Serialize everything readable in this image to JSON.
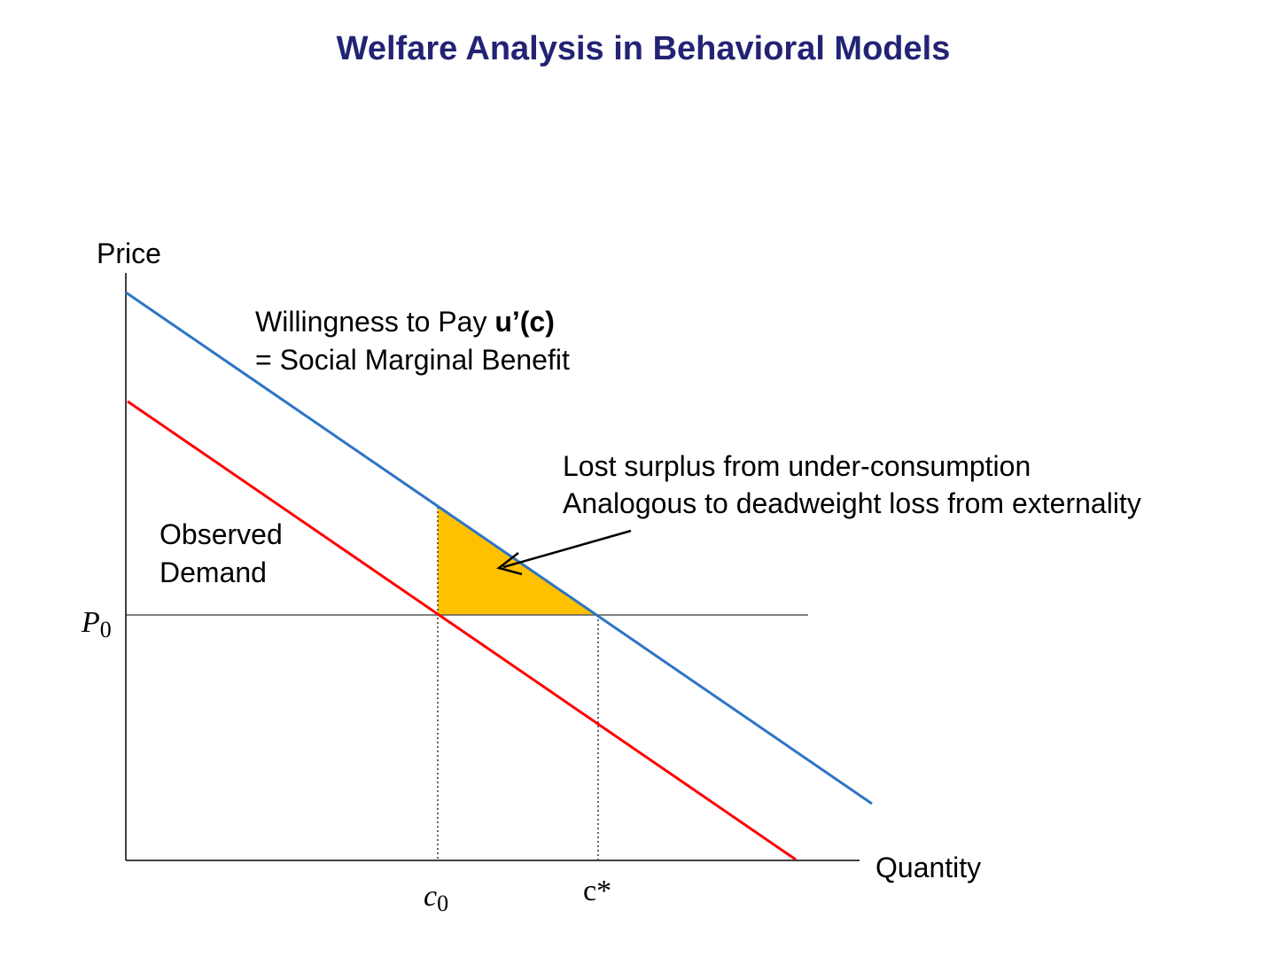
{
  "title": "Welfare Analysis in Behavioral Models",
  "diagram": {
    "y_axis_label": "Price",
    "x_axis_label": "Quantity",
    "wtp_label_prefix": "Willingness to Pay ",
    "wtp_label_bold": "u’(c)",
    "smb_label": "= Social Marginal Benefit",
    "demand_label_line1": "Observed",
    "demand_label_line2": "Demand",
    "lost_surplus_line1": "Lost surplus from under-consumption",
    "lost_surplus_line2": "Analogous to deadweight loss from externality",
    "price_label": "P",
    "price_label_sub": "0",
    "c0_label": "c",
    "c0_label_sub": "0",
    "cstar_label": "c*"
  },
  "colors": {
    "title": "#232375",
    "wtp_line": "#2E75C4",
    "demand_line": "#FF0000",
    "triangle_fill": "#FFC000",
    "axis": "#000000",
    "guide": "#595959"
  }
}
